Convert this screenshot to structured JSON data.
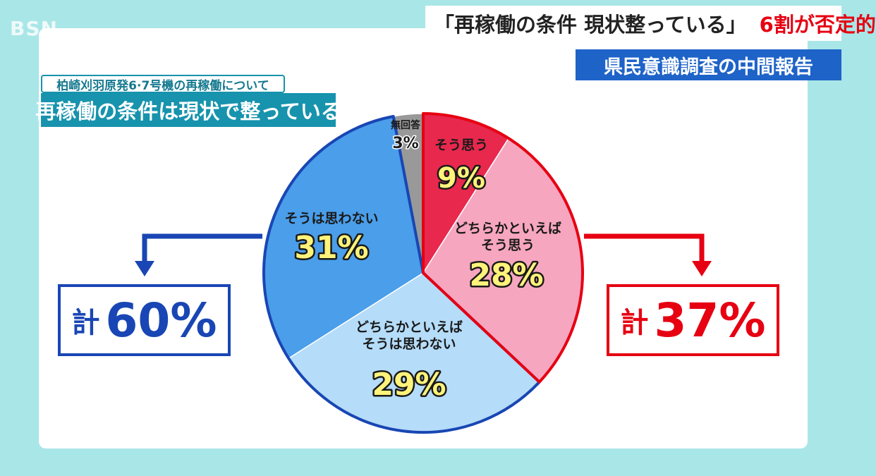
{
  "logo_text": "BSN",
  "header": {
    "headline_main": "「再稼働の条件 現状整っている」",
    "headline_accent": "6割が否定的",
    "subhead": "県民意識調査の中間報告"
  },
  "question": {
    "context": "柏崎刈羽原発6·7号機の再稼働について",
    "statement": "再稼働の条件は現状で整っている"
  },
  "totals": {
    "negative": {
      "prefix": "計",
      "value": "60%"
    },
    "positive": {
      "prefix": "計",
      "value": "37%"
    }
  },
  "colors": {
    "positive_strong": "#e8284d",
    "positive_weak": "#f7a6c0",
    "negative_weak": "#b5dcf8",
    "negative_strong": "#4a9eea",
    "no_answer": "#999999",
    "positive_outline": "#e60012",
    "negative_outline": "#1946b4"
  },
  "chart_data": {
    "type": "pie",
    "start": "12 o'clock, clockwise",
    "slices": [
      {
        "label": "そう思う",
        "value": 9,
        "display": "9%",
        "color": "#e8284d"
      },
      {
        "label": "どちらかといえばそう思う",
        "label_lines": [
          "どちらかといえば",
          "そう思う"
        ],
        "value": 28,
        "display": "28%",
        "color": "#f7a6c0"
      },
      {
        "label": "どちらかといえばそうは思わない",
        "label_lines": [
          "どちらかといえば",
          "そうは思わない"
        ],
        "value": 29,
        "display": "29%",
        "color": "#b5dcf8"
      },
      {
        "label": "そうは思わない",
        "value": 31,
        "display": "31%",
        "color": "#4a9eea"
      },
      {
        "label": "無回答",
        "value": 3,
        "display": "3%",
        "color": "#999999"
      }
    ]
  }
}
